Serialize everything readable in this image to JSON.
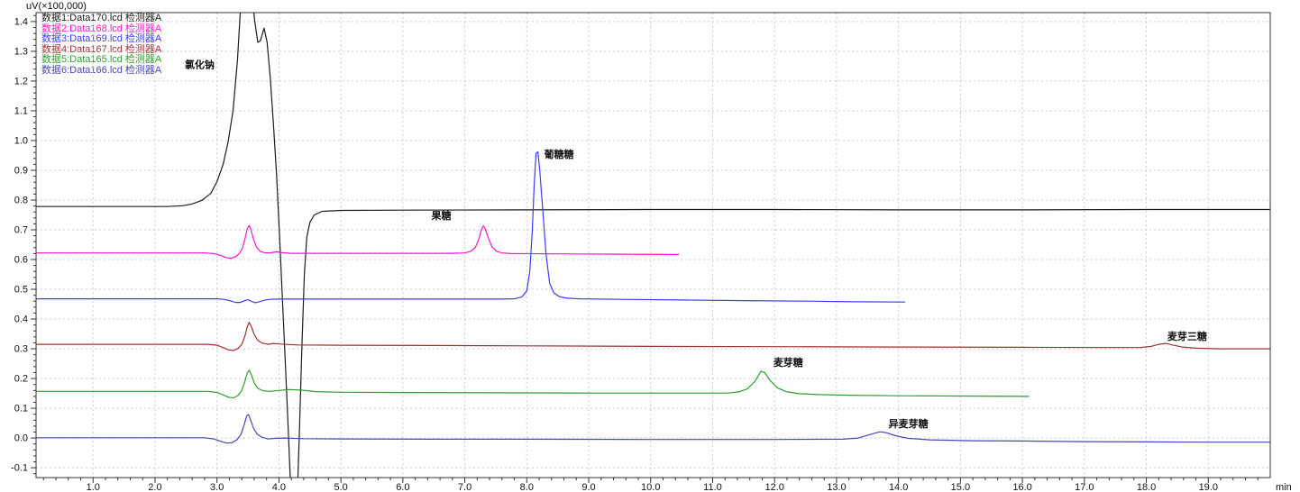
{
  "legend": [
    {
      "label": "数据1:Data170.lcd 检测器A",
      "color": "#1c1c1c"
    },
    {
      "label": "数据2:Data168.lcd 检测器A",
      "color": "#ff14d2"
    },
    {
      "label": "数据3:Data169.lcd 检测器A",
      "color": "#3b3bff"
    },
    {
      "label": "数据4:Data167.lcd 检测器A",
      "color": "#a03232"
    },
    {
      "label": "数据5:Data165.lcd 检测器A",
      "color": "#2f9e2f"
    },
    {
      "label": "数据6:Data166.lcd 检测器A",
      "color": "#4747b8"
    }
  ],
  "chart_data": {
    "type": "line",
    "title": "",
    "xlabel": "min",
    "ylabel": "uV(×100,000)",
    "xlim": [
      0.08,
      20.0
    ],
    "ylim": [
      -0.133,
      1.43
    ],
    "grid": true,
    "x_major_ticks": [
      1,
      2,
      3,
      4,
      5,
      6,
      7,
      8,
      9,
      10,
      11,
      12,
      13,
      14,
      15,
      16,
      17,
      18,
      19
    ],
    "x_minor_step": 0.2,
    "y_major_ticks": [
      -0.1,
      0.0,
      0.1,
      0.2,
      0.3,
      0.4,
      0.5,
      0.6,
      0.7,
      0.8,
      0.9,
      1.0,
      1.1,
      1.2,
      1.3,
      1.4
    ],
    "y_minor_step": 0.02,
    "grid_color": "#cccccc",
    "axis_color": "#333333",
    "annotations": [
      {
        "text": "氯化钠",
        "x": 2.48,
        "y": 1.266
      },
      {
        "text": "果糖",
        "x": 6.46,
        "y": 0.758
      },
      {
        "text": "葡糖糖",
        "x": 8.28,
        "y": 0.964
      },
      {
        "text": "麦芽糖",
        "x": 11.98,
        "y": 0.264
      },
      {
        "text": "异麦芽糖",
        "x": 13.84,
        "y": 0.058
      },
      {
        "text": "麦芽三糖",
        "x": 18.34,
        "y": 0.352
      }
    ],
    "series": [
      {
        "name": "数据1:Data170.lcd 检测器A",
        "color": "#1c1c1c",
        "points": [
          [
            0.08,
            0.778
          ],
          [
            1.0,
            0.778
          ],
          [
            1.8,
            0.778
          ],
          [
            2.2,
            0.778
          ],
          [
            2.45,
            0.781
          ],
          [
            2.6,
            0.787
          ],
          [
            2.75,
            0.798
          ],
          [
            2.9,
            0.822
          ],
          [
            3.0,
            0.862
          ],
          [
            3.1,
            0.92
          ],
          [
            3.18,
            0.995
          ],
          [
            3.26,
            1.1
          ],
          [
            3.33,
            1.27
          ],
          [
            3.4,
            1.52
          ],
          [
            3.48,
            1.6
          ],
          [
            3.55,
            1.52
          ],
          [
            3.61,
            1.4
          ],
          [
            3.66,
            1.33
          ],
          [
            3.7,
            1.335
          ],
          [
            3.76,
            1.378
          ],
          [
            3.81,
            1.33
          ],
          [
            3.86,
            1.21
          ],
          [
            3.91,
            1.06
          ],
          [
            3.96,
            0.89
          ],
          [
            4.01,
            0.68
          ],
          [
            4.06,
            0.45
          ],
          [
            4.11,
            0.22
          ],
          [
            4.16,
            -0.02
          ],
          [
            4.2,
            -0.22
          ],
          [
            4.29,
            -0.24
          ],
          [
            4.33,
            0.02
          ],
          [
            4.37,
            0.3
          ],
          [
            4.41,
            0.55
          ],
          [
            4.45,
            0.675
          ],
          [
            4.5,
            0.725
          ],
          [
            4.57,
            0.75
          ],
          [
            4.7,
            0.762
          ],
          [
            5.0,
            0.765
          ],
          [
            6.0,
            0.766
          ],
          [
            8.0,
            0.767
          ],
          [
            10.0,
            0.768
          ],
          [
            12.0,
            0.768
          ],
          [
            14.0,
            0.767
          ],
          [
            16.0,
            0.767
          ],
          [
            18.0,
            0.768
          ],
          [
            19.5,
            0.768
          ],
          [
            20.0,
            0.768
          ]
        ]
      },
      {
        "name": "数据2:Data168.lcd 检测器A",
        "color": "#ff14d2",
        "points": [
          [
            0.08,
            0.622
          ],
          [
            1.0,
            0.622
          ],
          [
            2.0,
            0.622
          ],
          [
            2.8,
            0.622
          ],
          [
            2.95,
            0.62
          ],
          [
            3.06,
            0.614
          ],
          [
            3.14,
            0.607
          ],
          [
            3.22,
            0.604
          ],
          [
            3.3,
            0.609
          ],
          [
            3.36,
            0.62
          ],
          [
            3.41,
            0.638
          ],
          [
            3.45,
            0.668
          ],
          [
            3.49,
            0.705
          ],
          [
            3.52,
            0.714
          ],
          [
            3.55,
            0.7
          ],
          [
            3.59,
            0.668
          ],
          [
            3.64,
            0.641
          ],
          [
            3.7,
            0.627
          ],
          [
            3.78,
            0.622
          ],
          [
            3.88,
            0.623
          ],
          [
            3.97,
            0.626
          ],
          [
            4.05,
            0.623
          ],
          [
            4.2,
            0.621
          ],
          [
            5.0,
            0.621
          ],
          [
            6.0,
            0.621
          ],
          [
            6.8,
            0.621
          ],
          [
            7.0,
            0.622
          ],
          [
            7.1,
            0.628
          ],
          [
            7.17,
            0.641
          ],
          [
            7.23,
            0.671
          ],
          [
            7.27,
            0.702
          ],
          [
            7.3,
            0.713
          ],
          [
            7.33,
            0.703
          ],
          [
            7.38,
            0.672
          ],
          [
            7.44,
            0.642
          ],
          [
            7.51,
            0.628
          ],
          [
            7.6,
            0.622
          ],
          [
            7.75,
            0.62
          ],
          [
            8.5,
            0.619
          ],
          [
            9.5,
            0.618
          ],
          [
            10.45,
            0.617
          ]
        ]
      },
      {
        "name": "数据3:Data169.lcd 检测器A",
        "color": "#3b3bff",
        "points": [
          [
            0.08,
            0.468
          ],
          [
            1.0,
            0.468
          ],
          [
            2.0,
            0.468
          ],
          [
            3.0,
            0.468
          ],
          [
            3.12,
            0.466
          ],
          [
            3.22,
            0.461
          ],
          [
            3.3,
            0.456
          ],
          [
            3.38,
            0.456
          ],
          [
            3.45,
            0.462
          ],
          [
            3.5,
            0.465
          ],
          [
            3.56,
            0.459
          ],
          [
            3.62,
            0.455
          ],
          [
            3.68,
            0.458
          ],
          [
            3.76,
            0.463
          ],
          [
            3.85,
            0.466
          ],
          [
            4.0,
            0.467
          ],
          [
            5.0,
            0.467
          ],
          [
            6.0,
            0.467
          ],
          [
            7.6,
            0.467
          ],
          [
            7.8,
            0.468
          ],
          [
            7.92,
            0.474
          ],
          [
            8.0,
            0.495
          ],
          [
            8.05,
            0.56
          ],
          [
            8.09,
            0.7
          ],
          [
            8.12,
            0.85
          ],
          [
            8.15,
            0.957
          ],
          [
            8.18,
            0.962
          ],
          [
            8.21,
            0.9
          ],
          [
            8.26,
            0.76
          ],
          [
            8.31,
            0.62
          ],
          [
            8.37,
            0.52
          ],
          [
            8.44,
            0.487
          ],
          [
            8.53,
            0.475
          ],
          [
            8.65,
            0.47
          ],
          [
            8.85,
            0.468
          ],
          [
            9.5,
            0.466
          ],
          [
            10.5,
            0.464
          ],
          [
            11.5,
            0.462
          ],
          [
            12.5,
            0.46
          ],
          [
            13.3,
            0.458
          ],
          [
            14.1,
            0.457
          ]
        ]
      },
      {
        "name": "数据4:Data167.lcd 检测器A",
        "color": "#a03232",
        "points": [
          [
            0.08,
            0.315
          ],
          [
            1.0,
            0.315
          ],
          [
            2.0,
            0.315
          ],
          [
            2.85,
            0.315
          ],
          [
            3.0,
            0.312
          ],
          [
            3.1,
            0.304
          ],
          [
            3.19,
            0.296
          ],
          [
            3.27,
            0.294
          ],
          [
            3.34,
            0.301
          ],
          [
            3.4,
            0.315
          ],
          [
            3.45,
            0.342
          ],
          [
            3.49,
            0.375
          ],
          [
            3.52,
            0.389
          ],
          [
            3.55,
            0.377
          ],
          [
            3.6,
            0.348
          ],
          [
            3.66,
            0.328
          ],
          [
            3.73,
            0.319
          ],
          [
            3.82,
            0.315
          ],
          [
            3.92,
            0.318
          ],
          [
            4.02,
            0.316
          ],
          [
            4.3,
            0.313
          ],
          [
            5.0,
            0.312
          ],
          [
            6.5,
            0.311
          ],
          [
            8.0,
            0.31
          ],
          [
            10.0,
            0.308
          ],
          [
            12.0,
            0.307
          ],
          [
            14.0,
            0.306
          ],
          [
            16.0,
            0.305
          ],
          [
            17.5,
            0.304
          ],
          [
            17.9,
            0.304
          ],
          [
            18.08,
            0.308
          ],
          [
            18.2,
            0.315
          ],
          [
            18.31,
            0.318
          ],
          [
            18.42,
            0.313
          ],
          [
            18.58,
            0.306
          ],
          [
            18.8,
            0.302
          ],
          [
            19.2,
            0.3
          ],
          [
            19.7,
            0.3
          ],
          [
            20.0,
            0.3
          ]
        ]
      },
      {
        "name": "数据5:Data165.lcd 检测器A",
        "color": "#2f9e2f",
        "points": [
          [
            0.08,
            0.157
          ],
          [
            1.0,
            0.157
          ],
          [
            2.0,
            0.157
          ],
          [
            2.85,
            0.157
          ],
          [
            3.0,
            0.153
          ],
          [
            3.1,
            0.145
          ],
          [
            3.19,
            0.137
          ],
          [
            3.27,
            0.135
          ],
          [
            3.34,
            0.143
          ],
          [
            3.4,
            0.16
          ],
          [
            3.45,
            0.19
          ],
          [
            3.49,
            0.22
          ],
          [
            3.52,
            0.228
          ],
          [
            3.55,
            0.215
          ],
          [
            3.6,
            0.186
          ],
          [
            3.66,
            0.167
          ],
          [
            3.74,
            0.159
          ],
          [
            3.85,
            0.157
          ],
          [
            4.0,
            0.16
          ],
          [
            4.15,
            0.163
          ],
          [
            4.35,
            0.161
          ],
          [
            4.6,
            0.156
          ],
          [
            5.0,
            0.154
          ],
          [
            6.0,
            0.153
          ],
          [
            7.5,
            0.152
          ],
          [
            9.0,
            0.151
          ],
          [
            10.5,
            0.151
          ],
          [
            11.25,
            0.151
          ],
          [
            11.42,
            0.155
          ],
          [
            11.56,
            0.165
          ],
          [
            11.68,
            0.19
          ],
          [
            11.78,
            0.224
          ],
          [
            11.84,
            0.22
          ],
          [
            11.93,
            0.193
          ],
          [
            12.05,
            0.168
          ],
          [
            12.2,
            0.155
          ],
          [
            12.4,
            0.149
          ],
          [
            12.7,
            0.146
          ],
          [
            13.2,
            0.144
          ],
          [
            14.0,
            0.142
          ],
          [
            15.0,
            0.141
          ],
          [
            16.1,
            0.14
          ]
        ]
      },
      {
        "name": "数据6:Data166.lcd 检测器A",
        "color": "#4747b8",
        "points": [
          [
            0.08,
            0.001
          ],
          [
            1.0,
            0.001
          ],
          [
            2.0,
            0.001
          ],
          [
            2.8,
            0.001
          ],
          [
            2.95,
            -0.003
          ],
          [
            3.06,
            -0.011
          ],
          [
            3.15,
            -0.017
          ],
          [
            3.24,
            -0.016
          ],
          [
            3.32,
            -0.006
          ],
          [
            3.39,
            0.013
          ],
          [
            3.44,
            0.045
          ],
          [
            3.48,
            0.075
          ],
          [
            3.51,
            0.079
          ],
          [
            3.54,
            0.062
          ],
          [
            3.59,
            0.033
          ],
          [
            3.65,
            0.013
          ],
          [
            3.72,
            0.003
          ],
          [
            3.82,
            -0.003
          ],
          [
            3.95,
            -0.001
          ],
          [
            4.1,
            0.0
          ],
          [
            4.4,
            -0.002
          ],
          [
            5.0,
            -0.003
          ],
          [
            6.5,
            -0.004
          ],
          [
            8.0,
            -0.004
          ],
          [
            10.0,
            -0.005
          ],
          [
            12.0,
            -0.005
          ],
          [
            13.1,
            -0.004
          ],
          [
            13.35,
            0.0
          ],
          [
            13.55,
            0.012
          ],
          [
            13.7,
            0.021
          ],
          [
            13.8,
            0.018
          ],
          [
            13.95,
            0.008
          ],
          [
            14.15,
            -0.001
          ],
          [
            14.5,
            -0.006
          ],
          [
            15.2,
            -0.009
          ],
          [
            16.0,
            -0.01
          ],
          [
            17.0,
            -0.012
          ],
          [
            18.0,
            -0.013
          ],
          [
            19.0,
            -0.014
          ],
          [
            20.0,
            -0.014
          ]
        ]
      }
    ]
  }
}
